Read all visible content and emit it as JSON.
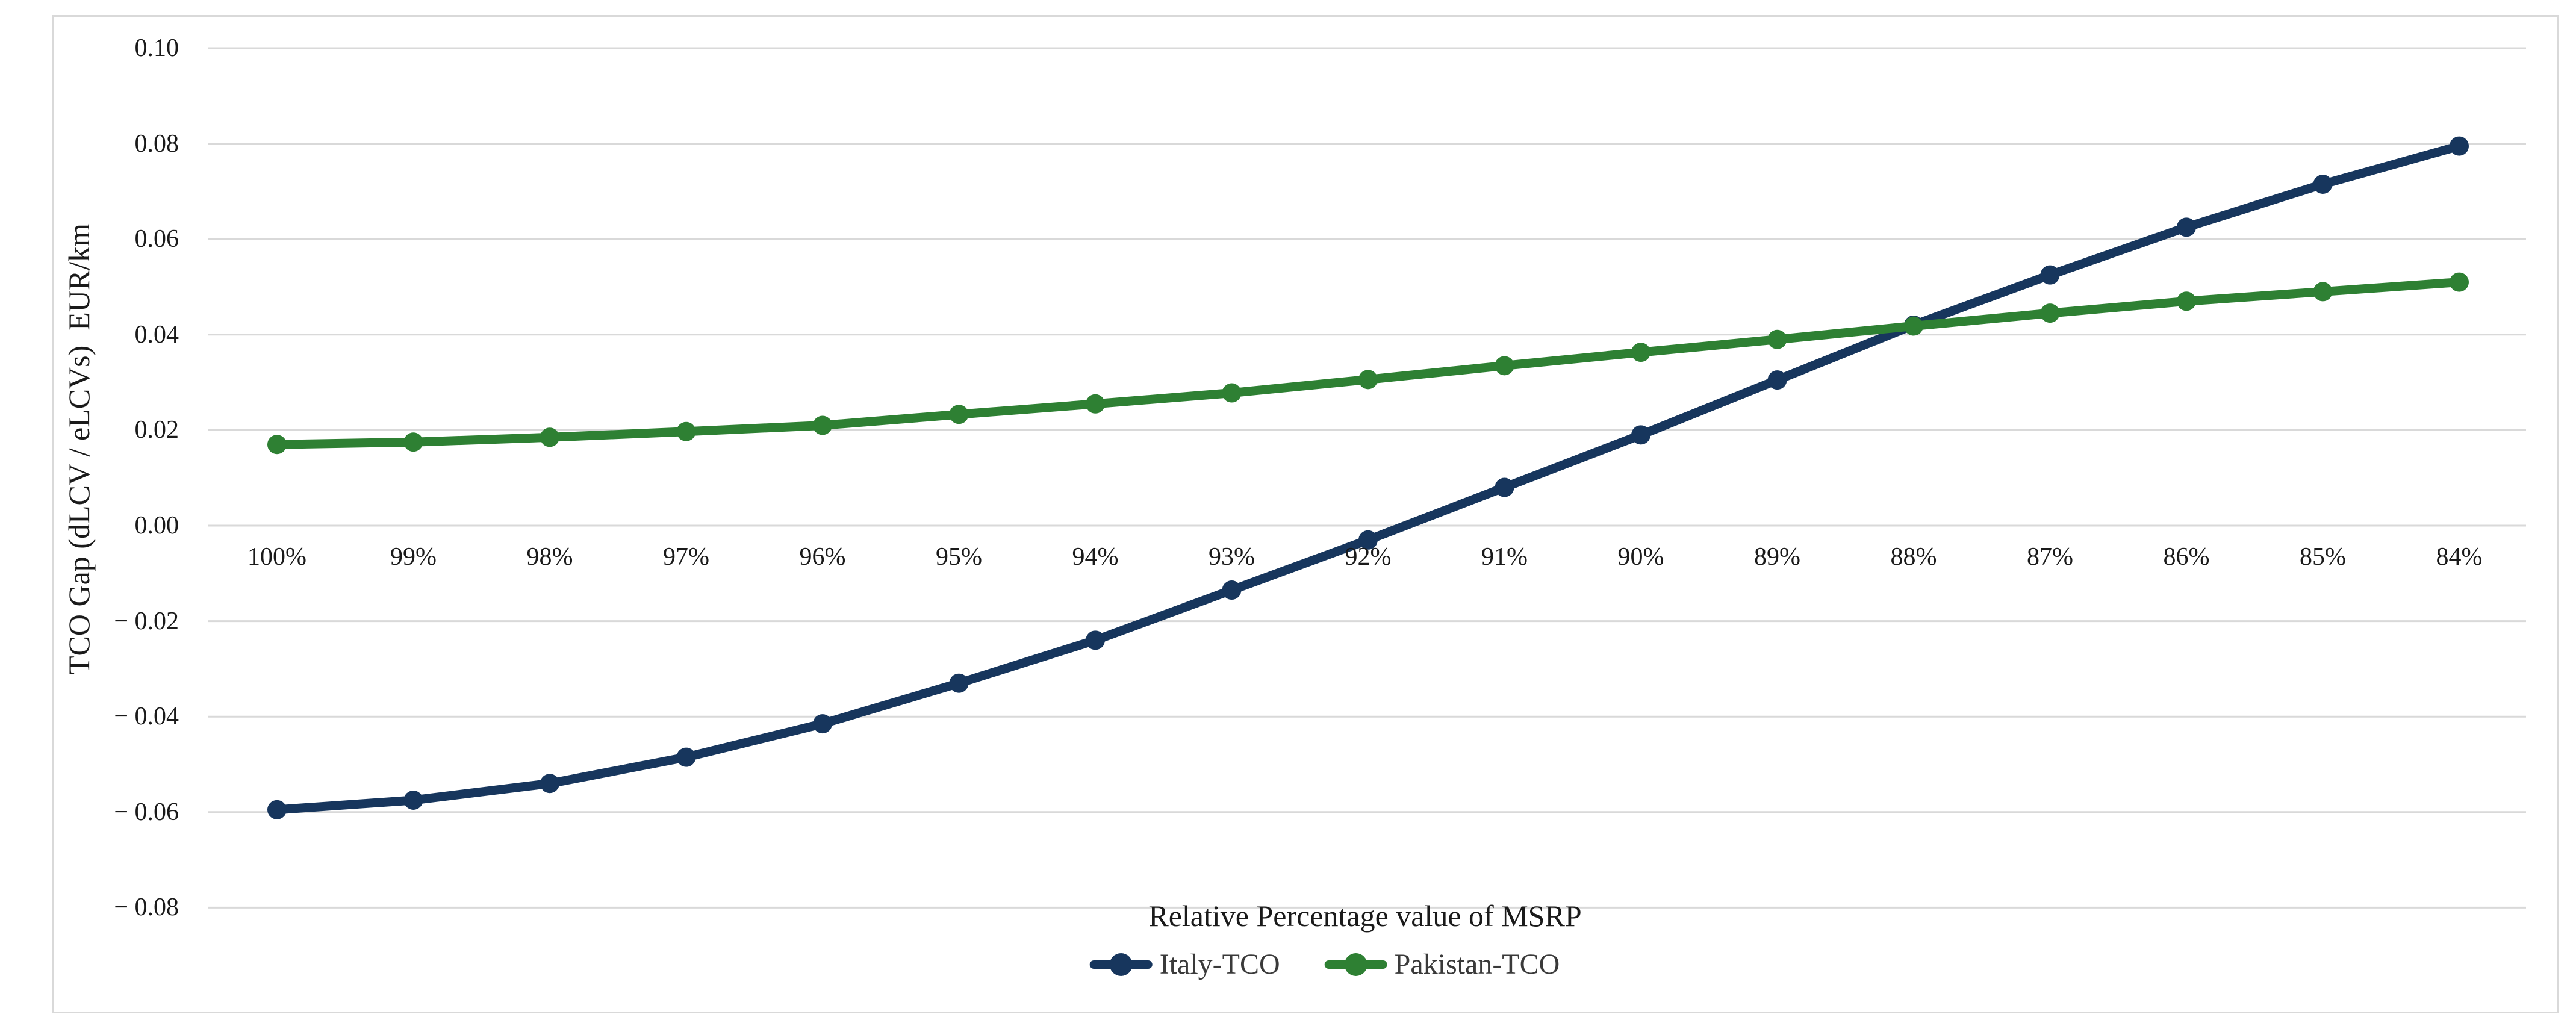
{
  "figure": {
    "background": "#ffffff",
    "border_color": "#d9d9d9",
    "gridline_color": "#d9d9d9",
    "text_color": "#1a1a1a"
  },
  "chart_data": {
    "type": "line",
    "title": "",
    "xlabel": "Relative Percentage value of MSRP",
    "ylabel": "TCO Gap (dLCV / eLCVs)  EUR/km",
    "categories": [
      "100%",
      "99%",
      "98%",
      "97%",
      "96%",
      "95%",
      "94%",
      "93%",
      "92%",
      "91%",
      "90%",
      "89%",
      "88%",
      "87%",
      "86%",
      "85%",
      "84%"
    ],
    "series": [
      {
        "name": "Italy-TCO",
        "color": "#17365d",
        "values": [
          -0.0595,
          -0.0575,
          -0.054,
          -0.0485,
          -0.0415,
          -0.033,
          -0.024,
          -0.0135,
          -0.003,
          0.008,
          0.019,
          0.0305,
          0.042,
          0.0525,
          0.0625,
          0.0715,
          0.0795
        ]
      },
      {
        "name": "Pakistan-TCO",
        "color": "#2e8033",
        "values": [
          0.017,
          0.0175,
          0.0185,
          0.0197,
          0.021,
          0.0233,
          0.0255,
          0.0278,
          0.0306,
          0.0335,
          0.0363,
          0.039,
          0.0418,
          0.0445,
          0.047,
          0.049,
          0.051
        ]
      }
    ],
    "y_ticks": [
      "0.10",
      "0.08",
      "0.06",
      "0.04",
      "0.02",
      "0.00",
      "− 0.02",
      "− 0.04",
      "− 0.06",
      "− 0.08"
    ],
    "y_tick_values": [
      0.1,
      0.08,
      0.06,
      0.04,
      0.02,
      0.0,
      -0.02,
      -0.04,
      -0.06,
      -0.08
    ],
    "ylim": [
      -0.08,
      0.1
    ],
    "ytick_step": 0.02,
    "grid": true,
    "legend_position": "bottom",
    "marker": "circle"
  }
}
